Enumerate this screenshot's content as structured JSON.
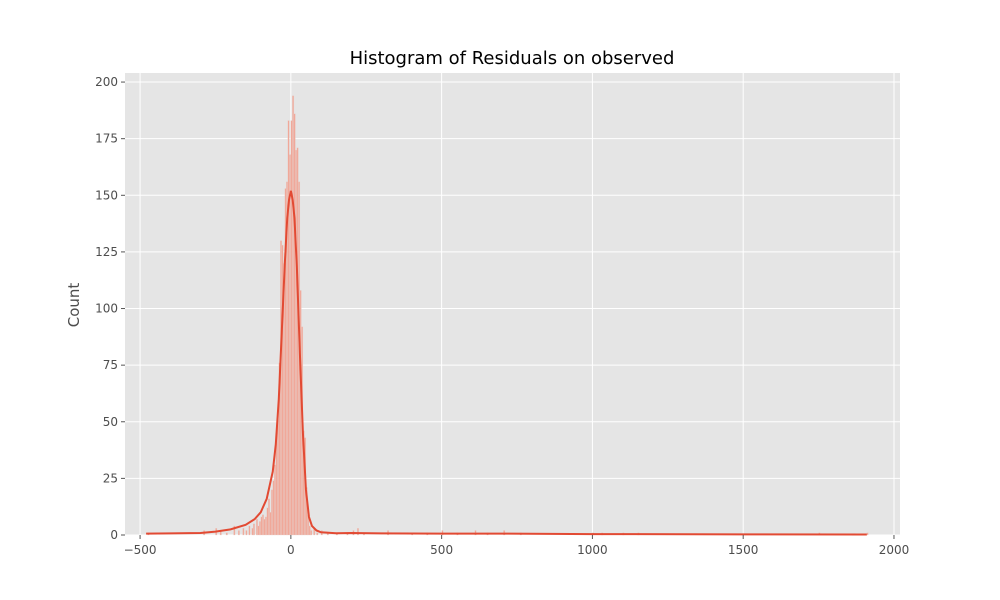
{
  "chart_data": {
    "type": "histogram",
    "title": "Histogram of Residuals on observed",
    "xlabel": "",
    "ylabel": "Count",
    "xlim": [
      -550,
      2020
    ],
    "ylim": [
      0,
      204
    ],
    "x_ticks": [
      {
        "value": -500,
        "label": "−500"
      },
      {
        "value": 0,
        "label": "0"
      },
      {
        "value": 500,
        "label": "500"
      },
      {
        "value": 1000,
        "label": "1000"
      },
      {
        "value": 1500,
        "label": "1500"
      },
      {
        "value": 2000,
        "label": "2000"
      }
    ],
    "y_ticks": [
      {
        "value": 0,
        "label": "0"
      },
      {
        "value": 25,
        "label": "25"
      },
      {
        "value": 50,
        "label": "50"
      },
      {
        "value": 75,
        "label": "75"
      },
      {
        "value": 100,
        "label": "100"
      },
      {
        "value": 125,
        "label": "125"
      },
      {
        "value": 150,
        "label": "150"
      },
      {
        "value": 175,
        "label": "175"
      },
      {
        "value": 200,
        "label": "200"
      }
    ],
    "grid": true,
    "bin_width": 5,
    "bins": [
      {
        "x": -475,
        "count": 1
      },
      {
        "x": -290,
        "count": 2
      },
      {
        "x": -250,
        "count": 3
      },
      {
        "x": -235,
        "count": 2
      },
      {
        "x": -215,
        "count": 1
      },
      {
        "x": -190,
        "count": 4
      },
      {
        "x": -175,
        "count": 2
      },
      {
        "x": -160,
        "count": 3
      },
      {
        "x": -150,
        "count": 2
      },
      {
        "x": -140,
        "count": 4
      },
      {
        "x": -130,
        "count": 3
      },
      {
        "x": -125,
        "count": 5
      },
      {
        "x": -115,
        "count": 7
      },
      {
        "x": -110,
        "count": 4
      },
      {
        "x": -105,
        "count": 6
      },
      {
        "x": -100,
        "count": 8
      },
      {
        "x": -95,
        "count": 9
      },
      {
        "x": -90,
        "count": 7
      },
      {
        "x": -85,
        "count": 8
      },
      {
        "x": -80,
        "count": 12
      },
      {
        "x": -75,
        "count": 16
      },
      {
        "x": -70,
        "count": 10
      },
      {
        "x": -65,
        "count": 20
      },
      {
        "x": -60,
        "count": 24
      },
      {
        "x": -55,
        "count": 31
      },
      {
        "x": -50,
        "count": 44
      },
      {
        "x": -45,
        "count": 51
      },
      {
        "x": -40,
        "count": 76
      },
      {
        "x": -35,
        "count": 130
      },
      {
        "x": -30,
        "count": 128
      },
      {
        "x": -25,
        "count": 120
      },
      {
        "x": -20,
        "count": 153
      },
      {
        "x": -15,
        "count": 156
      },
      {
        "x": -10,
        "count": 183
      },
      {
        "x": -5,
        "count": 168
      },
      {
        "x": 0,
        "count": 183
      },
      {
        "x": 5,
        "count": 194
      },
      {
        "x": 10,
        "count": 186
      },
      {
        "x": 15,
        "count": 170
      },
      {
        "x": 20,
        "count": 171
      },
      {
        "x": 25,
        "count": 156
      },
      {
        "x": 30,
        "count": 108
      },
      {
        "x": 35,
        "count": 92
      },
      {
        "x": 40,
        "count": 46
      },
      {
        "x": 45,
        "count": 43
      },
      {
        "x": 50,
        "count": 21
      },
      {
        "x": 55,
        "count": 9
      },
      {
        "x": 60,
        "count": 4
      },
      {
        "x": 65,
        "count": 2
      },
      {
        "x": 75,
        "count": 3
      },
      {
        "x": 85,
        "count": 1
      },
      {
        "x": 100,
        "count": 2
      },
      {
        "x": 120,
        "count": 1
      },
      {
        "x": 150,
        "count": 1
      },
      {
        "x": 185,
        "count": 1
      },
      {
        "x": 205,
        "count": 2
      },
      {
        "x": 220,
        "count": 3
      },
      {
        "x": 240,
        "count": 1
      },
      {
        "x": 320,
        "count": 2
      },
      {
        "x": 400,
        "count": 1
      },
      {
        "x": 450,
        "count": 1
      },
      {
        "x": 500,
        "count": 2
      },
      {
        "x": 550,
        "count": 1
      },
      {
        "x": 610,
        "count": 2
      },
      {
        "x": 650,
        "count": 1
      },
      {
        "x": 705,
        "count": 2
      },
      {
        "x": 760,
        "count": 1
      },
      {
        "x": 1000,
        "count": 1
      },
      {
        "x": 1030,
        "count": 1
      },
      {
        "x": 1100,
        "count": 1
      },
      {
        "x": 1150,
        "count": 1
      },
      {
        "x": 1750,
        "count": 1
      },
      {
        "x": 1910,
        "count": 1
      }
    ],
    "kde": [
      [
        -480,
        0.6
      ],
      [
        -400,
        0.7
      ],
      [
        -300,
        0.9
      ],
      [
        -250,
        1.5
      ],
      [
        -200,
        2.5
      ],
      [
        -150,
        4.5
      ],
      [
        -120,
        7
      ],
      [
        -100,
        10
      ],
      [
        -80,
        16
      ],
      [
        -60,
        28
      ],
      [
        -50,
        40
      ],
      [
        -40,
        60
      ],
      [
        -30,
        90
      ],
      [
        -20,
        120
      ],
      [
        -12,
        140
      ],
      [
        -6,
        148
      ],
      [
        0,
        152
      ],
      [
        6,
        148
      ],
      [
        12,
        140
      ],
      [
        20,
        118
      ],
      [
        30,
        80
      ],
      [
        40,
        45
      ],
      [
        50,
        20
      ],
      [
        60,
        8
      ],
      [
        70,
        4
      ],
      [
        85,
        2
      ],
      [
        100,
        1.2
      ],
      [
        150,
        0.8
      ],
      [
        200,
        0.9
      ],
      [
        300,
        0.7
      ],
      [
        500,
        0.6
      ],
      [
        700,
        0.6
      ],
      [
        1000,
        0.4
      ],
      [
        1500,
        0.3
      ],
      [
        1910,
        0.2
      ]
    ],
    "colors": {
      "background": "#e5e5e5",
      "grid": "#ffffff",
      "bar_fill": "#f0a899",
      "bar_edge": "#e6d3cf",
      "kde_line": "#e24a33"
    }
  }
}
